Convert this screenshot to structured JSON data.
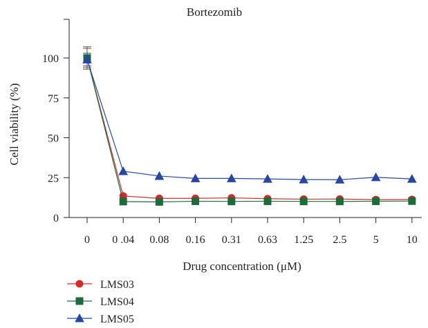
{
  "chart_data": {
    "type": "line",
    "title": "Bortezomib",
    "xlabel": "Drug concentration (μM)",
    "ylabel": "Cell viability (%)",
    "ylim": [
      0,
      115
    ],
    "yticks": [
      0,
      25,
      50,
      75,
      100
    ],
    "categories": [
      "0",
      "0 .04",
      "0.08",
      "0.16",
      "0.31",
      "0.63",
      "1.25",
      "2.5",
      "5",
      "10"
    ],
    "error_bars_at_first_point": true,
    "series": [
      {
        "name": "LMS03",
        "marker": "circle",
        "color": "#d42a2a",
        "values": [
          100,
          13.5,
          12,
          12,
          12.3,
          11.8,
          11.5,
          11.6,
          11.2,
          11.3
        ],
        "error": [
          6,
          0,
          0,
          0,
          0,
          0,
          0,
          0,
          0,
          0
        ]
      },
      {
        "name": "LMS04",
        "marker": "square",
        "color": "#1e6b3a",
        "values": [
          100,
          10,
          9.8,
          10.2,
          10.1,
          10.2,
          10.1,
          10.1,
          10.2,
          10.3
        ],
        "error": [
          7,
          0,
          0,
          0,
          0,
          0,
          0,
          0,
          0,
          0
        ]
      },
      {
        "name": "LMS05",
        "marker": "triangle",
        "color": "#2747a3",
        "values": [
          99,
          29,
          26,
          24.5,
          24.5,
          24.2,
          23.8,
          23.7,
          25.2,
          24.2
        ],
        "error": [
          4,
          0,
          0,
          0,
          0,
          0,
          0,
          0,
          0,
          0
        ]
      }
    ],
    "legend_position": "bottom-left",
    "grid": false
  }
}
